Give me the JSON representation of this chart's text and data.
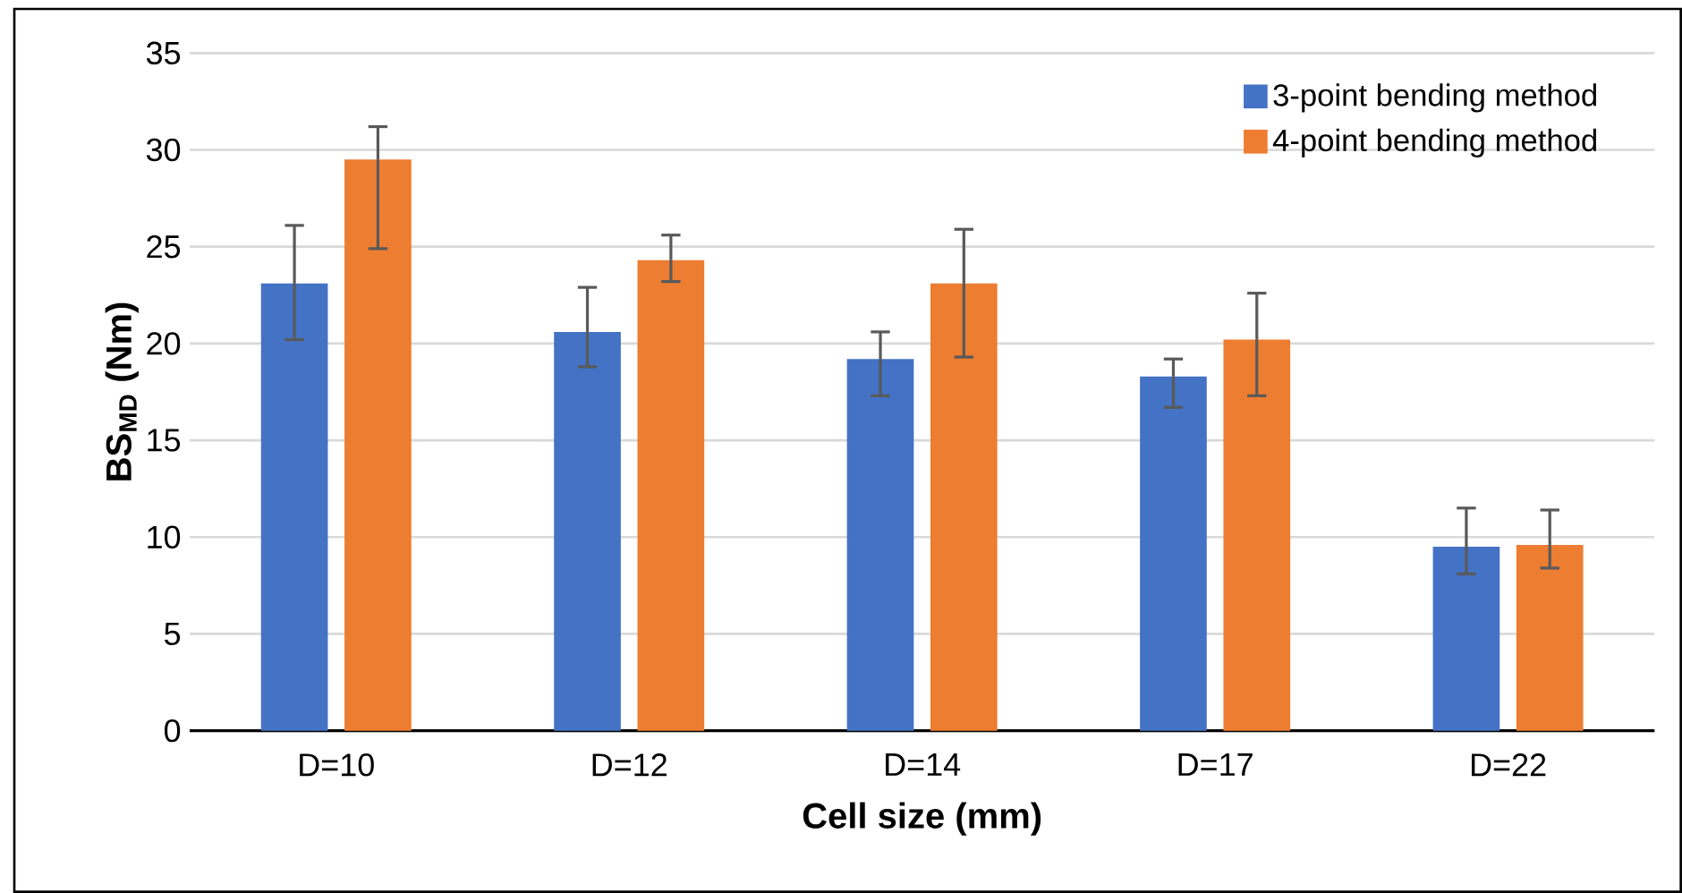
{
  "chart_data": {
    "type": "bar",
    "xlabel": "Cell size (mm)",
    "ylabel": "BS$_{MD}$ (Nm)",
    "categories": [
      "D=10",
      "D=12",
      "D=14",
      "D=17",
      "D=22"
    ],
    "series": [
      {
        "name": "3-point bending method",
        "color": "#4472c4",
        "values": [
          23.1,
          20.6,
          19.2,
          18.3,
          9.5
        ],
        "errors": [
          [
            20.2,
            26.1
          ],
          [
            18.8,
            22.9
          ],
          [
            17.3,
            20.6
          ],
          [
            16.7,
            19.2
          ],
          [
            8.1,
            11.5
          ]
        ]
      },
      {
        "name": "4-point bending method",
        "color": "#ed7d31",
        "values": [
          29.5,
          24.3,
          23.1,
          20.2,
          9.6
        ],
        "errors": [
          [
            24.9,
            31.2
          ],
          [
            23.2,
            25.6
          ],
          [
            19.3,
            25.9
          ],
          [
            17.3,
            22.6
          ],
          [
            8.4,
            11.4
          ]
        ]
      }
    ],
    "ylim": [
      0,
      35
    ],
    "yticks": [
      0,
      5,
      10,
      15,
      20,
      25,
      30,
      35
    ],
    "grid": "y",
    "legend": "top right"
  }
}
